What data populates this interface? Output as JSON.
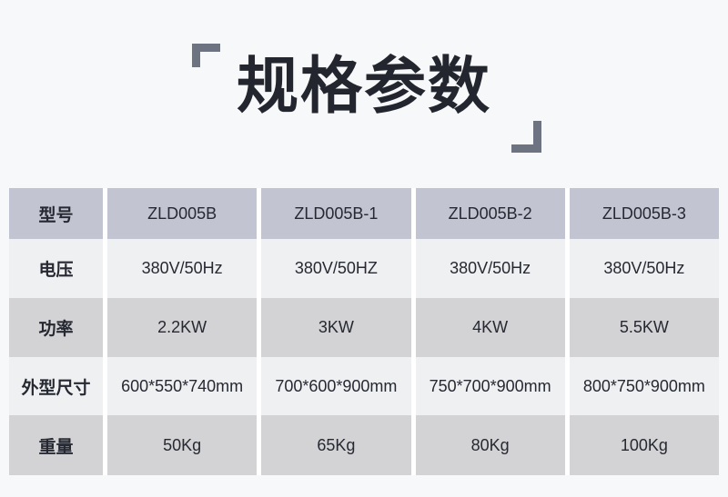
{
  "title": {
    "text": "规格参数"
  },
  "colors": {
    "page_bg": "#f7f8f9",
    "header_row_bg": "#c2c5d1",
    "row_light_bg": "#eff0f2",
    "row_medium_bg": "#d3d3d5",
    "text": "#262932",
    "title_text": "#23262e",
    "bracket": "#6d7380",
    "column_gap": "#ffffff"
  },
  "table": {
    "header": {
      "label": "型号",
      "values": [
        "ZLD005B",
        "ZLD005B-1",
        "ZLD005B-2",
        "ZLD005B-3"
      ]
    },
    "rows": [
      {
        "label": "电压",
        "values": [
          "380V/50Hz",
          "380V/50HZ",
          "380V/50Hz",
          "380V/50Hz"
        ]
      },
      {
        "label": "功率",
        "values": [
          "2.2KW",
          "3KW",
          "4KW",
          "5.5KW"
        ]
      },
      {
        "label": "外型尺寸",
        "values": [
          "600*550*740mm",
          "700*600*900mm",
          "750*700*900mm",
          "800*750*900mm"
        ]
      },
      {
        "label": "重量",
        "values": [
          "50Kg",
          "65Kg",
          "80Kg",
          "100Kg"
        ]
      }
    ]
  }
}
